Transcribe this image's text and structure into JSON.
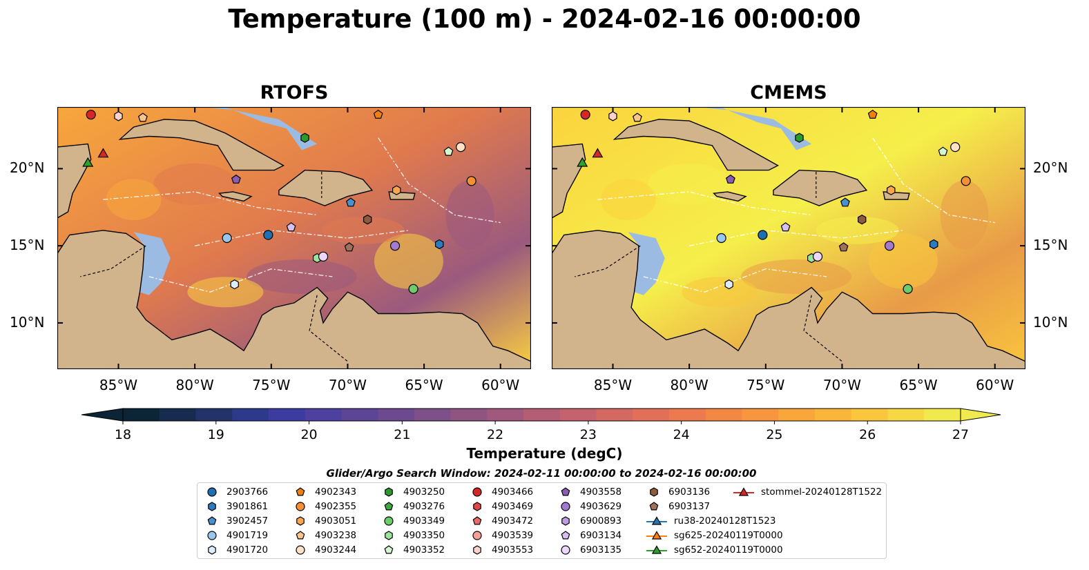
{
  "title": "Temperature (100 m) - 2024-02-16 00:00:00",
  "panels": [
    {
      "title": "RTOFS",
      "ocean_colors": [
        "#f8a73c",
        "#e07a4e",
        "#9a5a7e",
        "#fbd040"
      ]
    },
    {
      "title": "CMEMS",
      "ocean_colors": [
        "#fbd33e",
        "#f5ef4a",
        "#e89a48",
        "#f9c63d"
      ]
    }
  ],
  "colors": {
    "land": "#d2b48c",
    "shelf": "#9cbbe2",
    "deep": "#0b2536",
    "coast": "#000000"
  },
  "axes": {
    "x_ticks": [
      "85°W",
      "80°W",
      "75°W",
      "70°W",
      "65°W",
      "60°W"
    ],
    "y_ticks": [
      "20°N",
      "15°N",
      "10°N"
    ],
    "lon_range": [
      -89,
      -58
    ],
    "lat_range": [
      7,
      24
    ]
  },
  "colorbar": {
    "label": "Temperature (degC)",
    "ticks": [
      "18",
      "19",
      "20",
      "21",
      "22",
      "23",
      "24",
      "25",
      "26",
      "27"
    ],
    "range": [
      18,
      27
    ],
    "colors": [
      "#0b2536",
      "#172b4f",
      "#23336a",
      "#2d3a8c",
      "#3c3ca0",
      "#4d409e",
      "#5d4596",
      "#6d4a8f",
      "#7e5088",
      "#8e5581",
      "#a0597c",
      "#b35e75",
      "#c4636d",
      "#d46962",
      "#e27058",
      "#ec7a4e",
      "#f38744",
      "#f7963e",
      "#f9a63a",
      "#fab63a",
      "#f9c63d",
      "#f5d843",
      "#f0ea4e"
    ],
    "extend": "both"
  },
  "search_window": "Glider/Argo Search Window: 2024-02-11 00:00:00 to 2024-02-16 00:00:00",
  "legend": [
    {
      "id": "2903766",
      "shape": "circle",
      "color": "#1f6fb4"
    },
    {
      "id": "3901861",
      "shape": "hexagon",
      "color": "#2b7bc0"
    },
    {
      "id": "3902457",
      "shape": "pentagon",
      "color": "#4a90cf"
    },
    {
      "id": "4901719",
      "shape": "circle",
      "color": "#9ac6eb"
    },
    {
      "id": "4901720",
      "shape": "hexagon",
      "color": "#dcecfa"
    },
    {
      "id": "4902343",
      "shape": "pentagon",
      "color": "#f07f10"
    },
    {
      "id": "4902355",
      "shape": "circle",
      "color": "#f59034"
    },
    {
      "id": "4903051",
      "shape": "hexagon",
      "color": "#f8a650"
    },
    {
      "id": "4903238",
      "shape": "pentagon",
      "color": "#f9c48c"
    },
    {
      "id": "4903244",
      "shape": "circle",
      "color": "#fde2c6"
    },
    {
      "id": "4903250",
      "shape": "hexagon",
      "color": "#2a9a2a"
    },
    {
      "id": "4903276",
      "shape": "pentagon",
      "color": "#3fa83f"
    },
    {
      "id": "4903349",
      "shape": "circle",
      "color": "#6ccc6c"
    },
    {
      "id": "4903350",
      "shape": "hexagon",
      "color": "#9de39d"
    },
    {
      "id": "4903352",
      "shape": "pentagon",
      "color": "#d4f7d0"
    },
    {
      "id": "4903466",
      "shape": "circle",
      "color": "#d62728"
    },
    {
      "id": "4903469",
      "shape": "hexagon",
      "color": "#e04848"
    },
    {
      "id": "4903472",
      "shape": "pentagon",
      "color": "#ea6a6a"
    },
    {
      "id": "4903539",
      "shape": "circle",
      "color": "#f7a09a"
    },
    {
      "id": "4903553",
      "shape": "hexagon",
      "color": "#fbd2cc"
    },
    {
      "id": "4903558",
      "shape": "pentagon",
      "color": "#8a5cb5"
    },
    {
      "id": "4903629",
      "shape": "circle",
      "color": "#a27ad0"
    },
    {
      "id": "6900893",
      "shape": "hexagon",
      "color": "#bd9ce3"
    },
    {
      "id": "6903134",
      "shape": "pentagon",
      "color": "#d7bff2"
    },
    {
      "id": "6903135",
      "shape": "circle",
      "color": "#ecd8fa"
    },
    {
      "id": "6903136",
      "shape": "hexagon",
      "color": "#8c5a3c"
    },
    {
      "id": "6903137",
      "shape": "pentagon",
      "color": "#a0705a"
    },
    {
      "id": "ru38-20240128T1523",
      "shape": "triangle-line",
      "color": "#1f77b4"
    },
    {
      "id": "sg625-20240119T0000",
      "shape": "triangle-line",
      "color": "#ff7f0e"
    },
    {
      "id": "sg652-20240119T0000",
      "shape": "triangle-line",
      "color": "#2ca02c"
    },
    {
      "id": "stommel-20240128T1522",
      "shape": "triangle-line",
      "color": "#d62728"
    }
  ],
  "markers": [
    {
      "id": "4903466",
      "lon": -86.8,
      "lat": 23.5
    },
    {
      "id": "4903553",
      "lon": -85.0,
      "lat": 23.4
    },
    {
      "id": "4903238",
      "lon": -83.4,
      "lat": 23.3
    },
    {
      "id": "4902343",
      "lon": -68.0,
      "lat": 23.5
    },
    {
      "id": "4903250",
      "lon": -72.8,
      "lat": 22.0
    },
    {
      "id": "4903352",
      "lon": -63.4,
      "lat": 21.1
    },
    {
      "id": "4903244",
      "lon": -62.6,
      "lat": 21.4
    },
    {
      "id": "4902355",
      "lon": -61.9,
      "lat": 19.2
    },
    {
      "id": "4903558",
      "lon": -77.3,
      "lat": 19.3
    },
    {
      "id": "4903051",
      "lon": -66.8,
      "lat": 18.6
    },
    {
      "id": "3902457",
      "lon": -69.8,
      "lat": 17.8
    },
    {
      "id": "6903136",
      "lon": -68.7,
      "lat": 16.7
    },
    {
      "id": "6903134",
      "lon": -73.7,
      "lat": 16.2
    },
    {
      "id": "2903766",
      "lon": -75.2,
      "lat": 15.7
    },
    {
      "id": "4901719",
      "lon": -77.9,
      "lat": 15.5
    },
    {
      "id": "4903629",
      "lon": -66.9,
      "lat": 15.0
    },
    {
      "id": "3901861",
      "lon": -64.0,
      "lat": 15.1
    },
    {
      "id": "6903137",
      "lon": -69.9,
      "lat": 14.9
    },
    {
      "id": "4903350",
      "lon": -72.0,
      "lat": 14.2
    },
    {
      "id": "6903135",
      "lon": -71.6,
      "lat": 14.3
    },
    {
      "id": "4901720",
      "lon": -77.4,
      "lat": 12.5
    },
    {
      "id": "4903349",
      "lon": -65.7,
      "lat": 12.2
    }
  ],
  "gliders": [
    {
      "id": "sg652-20240119T0000",
      "lon": -87.0,
      "lat": 20.4
    },
    {
      "id": "stommel-20240128T1522",
      "lon": -86.0,
      "lat": 21.0
    }
  ]
}
